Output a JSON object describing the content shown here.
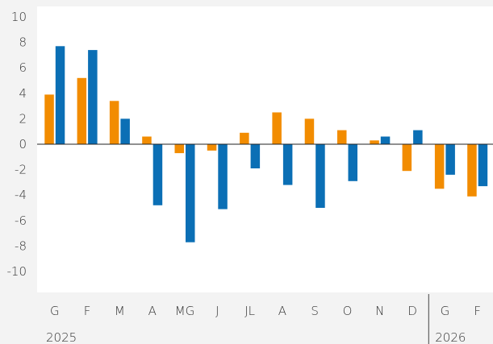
{
  "chart_data": {
    "type": "bar",
    "title": "",
    "xlabel": "",
    "ylabel": "",
    "ylim": [
      -12,
      10
    ],
    "yticks": [
      10,
      8,
      6,
      4,
      2,
      0,
      -2,
      -4,
      -6,
      -8,
      -10
    ],
    "categories": [
      "G",
      "F",
      "M",
      "A",
      "MG",
      "J",
      "JL",
      "A",
      "S",
      "O",
      "N",
      "D",
      "G",
      "F"
    ],
    "year_groups": [
      {
        "label": "2025",
        "start_index": 0,
        "end_index": 11
      },
      {
        "label": "2026",
        "start_index": 12,
        "end_index": 13
      }
    ],
    "series": [
      {
        "color": "#f28c00",
        "values": [
          3.9,
          5.2,
          3.4,
          0.6,
          -0.7,
          -0.5,
          0.9,
          2.5,
          2.0,
          1.1,
          0.3,
          -2.1,
          -3.5,
          -4.1
        ]
      },
      {
        "color": "#0b6fb5",
        "values": [
          7.7,
          7.4,
          2.0,
          -4.8,
          -7.7,
          -5.1,
          -1.9,
          -3.2,
          -5.0,
          -2.9,
          0.6,
          1.1,
          -2.4,
          -3.3
        ]
      }
    ],
    "grid": false,
    "legend": "none",
    "panel_background": "#ffffff",
    "page_background": "#f3f3f3"
  }
}
